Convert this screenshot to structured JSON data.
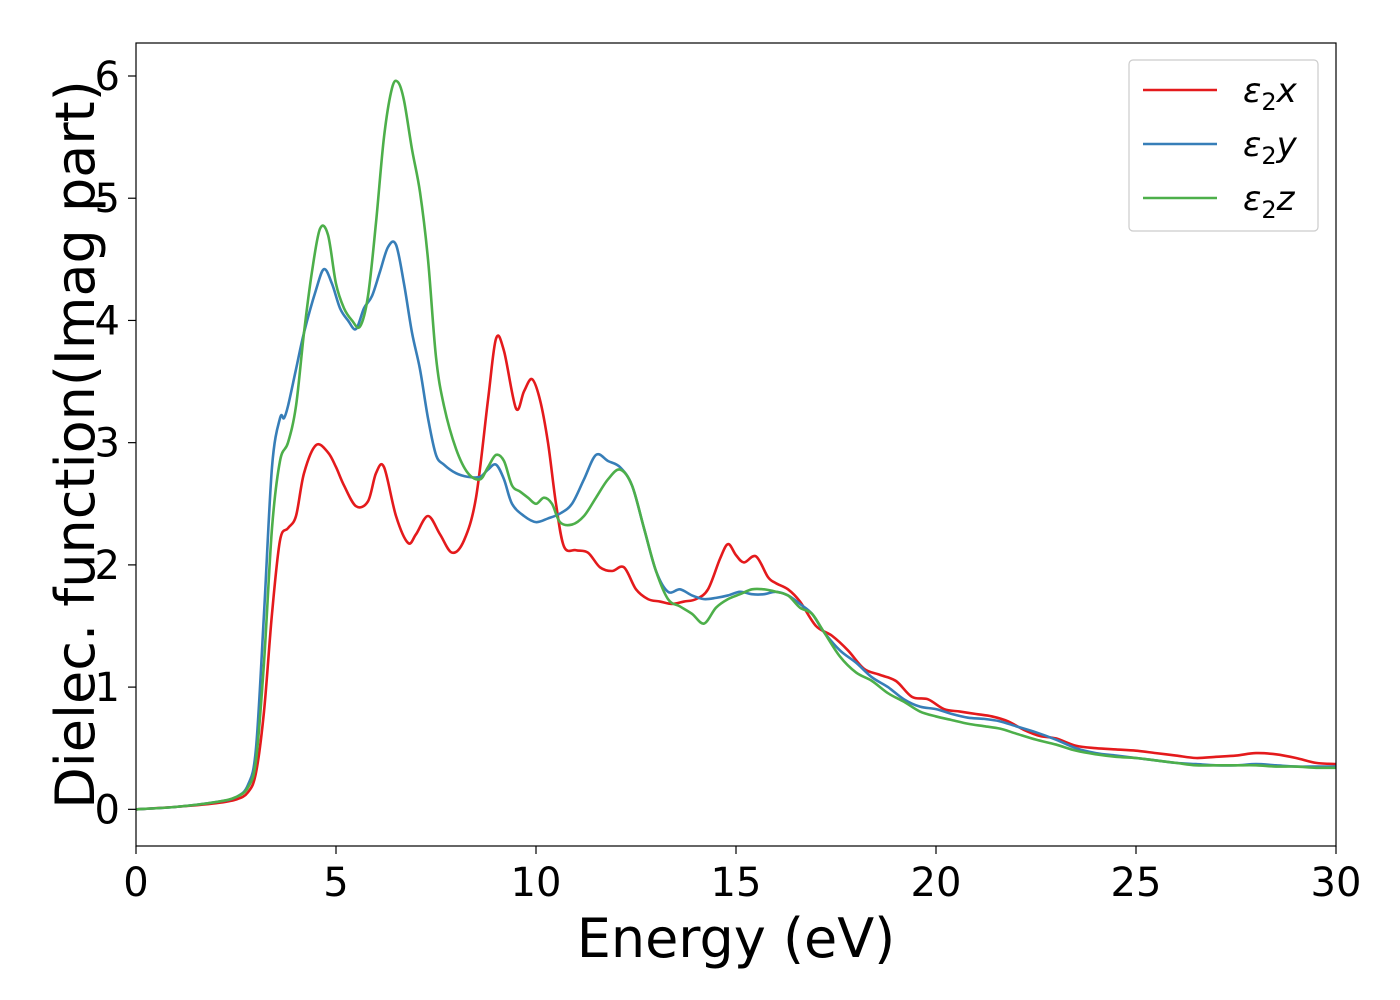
{
  "chart_data": {
    "type": "line",
    "title": "",
    "xlabel": "Energy (eV)",
    "ylabel": "Dielec. function(Imag part)",
    "xlim": [
      0,
      30
    ],
    "ylim": [
      -0.3,
      6.27
    ],
    "xticks": [
      0,
      5,
      10,
      15,
      20,
      25,
      30
    ],
    "yticks": [
      0,
      1,
      2,
      3,
      4,
      5,
      6
    ],
    "grid": false,
    "legend": "top-right",
    "series": [
      {
        "name": "ε2x",
        "name_main": "ε",
        "name_sub": "2",
        "name_axis": "x",
        "color": "#e41a1c",
        "x": [
          0,
          1,
          2,
          2.5,
          2.8,
          3.0,
          3.2,
          3.4,
          3.6,
          3.8,
          4.0,
          4.2,
          4.5,
          4.8,
          5.0,
          5.2,
          5.5,
          5.8,
          6.0,
          6.2,
          6.5,
          6.8,
          7.0,
          7.3,
          7.6,
          7.9,
          8.2,
          8.5,
          8.8,
          9.0,
          9.2,
          9.5,
          9.7,
          9.9,
          10.1,
          10.3,
          10.5,
          10.7,
          11.0,
          11.3,
          11.6,
          11.9,
          12.2,
          12.5,
          12.8,
          13.1,
          13.4,
          13.7,
          14.0,
          14.3,
          14.6,
          14.8,
          15.0,
          15.2,
          15.5,
          15.8,
          16.0,
          16.3,
          16.6,
          17.0,
          17.4,
          17.8,
          18.2,
          18.6,
          19.0,
          19.4,
          19.8,
          20.2,
          20.6,
          21.0,
          21.4,
          21.8,
          22.2,
          22.6,
          23.0,
          23.5,
          24.0,
          24.5,
          25.0,
          25.5,
          26.0,
          26.5,
          27.0,
          27.5,
          28.0,
          28.5,
          29.0,
          29.5,
          30.0
        ],
        "y": [
          0.0,
          0.02,
          0.05,
          0.08,
          0.14,
          0.3,
          0.8,
          1.6,
          2.2,
          2.3,
          2.4,
          2.75,
          2.98,
          2.92,
          2.8,
          2.65,
          2.48,
          2.52,
          2.75,
          2.8,
          2.4,
          2.18,
          2.25,
          2.4,
          2.25,
          2.1,
          2.2,
          2.55,
          3.35,
          3.85,
          3.75,
          3.28,
          3.42,
          3.52,
          3.35,
          3.0,
          2.5,
          2.15,
          2.12,
          2.1,
          1.98,
          1.95,
          1.98,
          1.8,
          1.72,
          1.7,
          1.68,
          1.7,
          1.72,
          1.8,
          2.05,
          2.17,
          2.08,
          2.02,
          2.07,
          1.9,
          1.85,
          1.8,
          1.7,
          1.5,
          1.42,
          1.3,
          1.15,
          1.1,
          1.05,
          0.92,
          0.9,
          0.82,
          0.8,
          0.78,
          0.76,
          0.72,
          0.65,
          0.6,
          0.58,
          0.52,
          0.5,
          0.49,
          0.48,
          0.46,
          0.44,
          0.42,
          0.43,
          0.44,
          0.46,
          0.45,
          0.42,
          0.38,
          0.37
        ]
      },
      {
        "name": "ε2y",
        "name_main": "ε",
        "name_sub": "2",
        "name_axis": "y",
        "color": "#377eb8",
        "x": [
          0,
          1,
          2,
          2.5,
          2.8,
          3.0,
          3.2,
          3.4,
          3.6,
          3.7,
          3.8,
          4.0,
          4.2,
          4.5,
          4.7,
          4.9,
          5.1,
          5.3,
          5.5,
          5.7,
          5.9,
          6.1,
          6.3,
          6.5,
          6.7,
          6.9,
          7.1,
          7.3,
          7.5,
          7.7,
          8.0,
          8.3,
          8.6,
          8.8,
          9.0,
          9.2,
          9.4,
          9.7,
          10.0,
          10.3,
          10.6,
          10.9,
          11.2,
          11.5,
          11.8,
          12.1,
          12.4,
          12.7,
          13.0,
          13.3,
          13.6,
          13.9,
          14.2,
          14.5,
          14.8,
          15.1,
          15.4,
          15.7,
          16.0,
          16.3,
          16.6,
          16.9,
          17.2,
          17.6,
          18.0,
          18.4,
          18.8,
          19.2,
          19.6,
          20.0,
          20.4,
          20.8,
          21.2,
          21.6,
          22.0,
          22.5,
          23.0,
          23.5,
          24.0,
          24.5,
          25.0,
          25.5,
          26.0,
          26.5,
          27.0,
          27.5,
          28.0,
          28.5,
          29.0,
          29.5,
          30.0
        ],
        "y": [
          0.0,
          0.02,
          0.06,
          0.1,
          0.2,
          0.5,
          1.6,
          2.8,
          3.2,
          3.2,
          3.3,
          3.6,
          3.9,
          4.25,
          4.42,
          4.3,
          4.1,
          4.0,
          3.93,
          4.1,
          4.2,
          4.4,
          4.6,
          4.62,
          4.3,
          3.9,
          3.6,
          3.2,
          2.9,
          2.82,
          2.75,
          2.72,
          2.72,
          2.78,
          2.82,
          2.7,
          2.5,
          2.4,
          2.35,
          2.38,
          2.42,
          2.5,
          2.7,
          2.9,
          2.85,
          2.8,
          2.65,
          2.3,
          1.95,
          1.78,
          1.8,
          1.75,
          1.72,
          1.73,
          1.75,
          1.78,
          1.76,
          1.76,
          1.78,
          1.75,
          1.68,
          1.6,
          1.45,
          1.3,
          1.2,
          1.08,
          1.0,
          0.9,
          0.84,
          0.82,
          0.78,
          0.75,
          0.74,
          0.72,
          0.68,
          0.63,
          0.57,
          0.5,
          0.46,
          0.44,
          0.42,
          0.4,
          0.38,
          0.37,
          0.36,
          0.36,
          0.37,
          0.36,
          0.35,
          0.35,
          0.35
        ]
      },
      {
        "name": "ε2z",
        "name_main": "ε",
        "name_sub": "2",
        "name_axis": "z",
        "color": "#4daf4a",
        "x": [
          0,
          1,
          2,
          2.5,
          2.8,
          3.0,
          3.2,
          3.4,
          3.6,
          3.8,
          4.0,
          4.2,
          4.4,
          4.6,
          4.8,
          5.0,
          5.2,
          5.4,
          5.6,
          5.8,
          6.0,
          6.2,
          6.4,
          6.55,
          6.7,
          6.9,
          7.1,
          7.3,
          7.5,
          7.7,
          8.0,
          8.3,
          8.6,
          8.8,
          9.0,
          9.2,
          9.4,
          9.6,
          9.8,
          10.0,
          10.2,
          10.4,
          10.6,
          10.9,
          11.2,
          11.5,
          11.8,
          12.1,
          12.4,
          12.7,
          13.0,
          13.3,
          13.6,
          13.9,
          14.2,
          14.5,
          14.8,
          15.1,
          15.4,
          15.7,
          16.0,
          16.3,
          16.6,
          16.9,
          17.2,
          17.6,
          18.0,
          18.4,
          18.8,
          19.2,
          19.6,
          20.0,
          20.4,
          20.8,
          21.2,
          21.6,
          22.0,
          22.5,
          23.0,
          23.5,
          24.0,
          24.5,
          25.0,
          25.5,
          26.0,
          26.5,
          27.0,
          27.5,
          28.0,
          28.5,
          29.0,
          29.5,
          30.0
        ],
        "y": [
          0.0,
          0.02,
          0.06,
          0.1,
          0.18,
          0.4,
          1.2,
          2.3,
          2.85,
          3.0,
          3.3,
          3.9,
          4.4,
          4.75,
          4.7,
          4.3,
          4.1,
          4.0,
          3.95,
          4.2,
          4.8,
          5.5,
          5.9,
          5.95,
          5.8,
          5.4,
          5.05,
          4.5,
          3.7,
          3.3,
          2.95,
          2.75,
          2.7,
          2.8,
          2.9,
          2.85,
          2.65,
          2.6,
          2.55,
          2.5,
          2.55,
          2.5,
          2.35,
          2.33,
          2.4,
          2.55,
          2.7,
          2.78,
          2.65,
          2.3,
          1.95,
          1.72,
          1.66,
          1.6,
          1.52,
          1.65,
          1.72,
          1.76,
          1.8,
          1.8,
          1.78,
          1.75,
          1.65,
          1.6,
          1.45,
          1.25,
          1.12,
          1.05,
          0.95,
          0.88,
          0.8,
          0.76,
          0.73,
          0.7,
          0.68,
          0.66,
          0.62,
          0.57,
          0.53,
          0.48,
          0.45,
          0.43,
          0.42,
          0.4,
          0.38,
          0.36,
          0.36,
          0.36,
          0.36,
          0.35,
          0.35,
          0.34,
          0.34
        ]
      }
    ]
  }
}
